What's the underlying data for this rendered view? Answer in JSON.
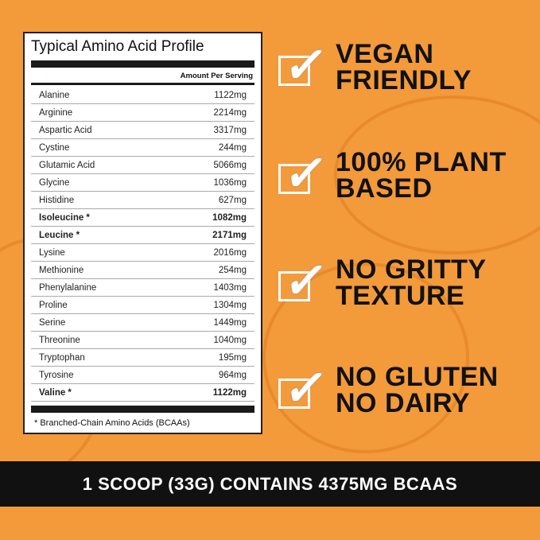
{
  "panel": {
    "title": "Typical Amino Acid Profile",
    "column_header": "Amount Per Serving",
    "rows": [
      {
        "name": "Alanine",
        "amount": "1122mg",
        "bold": false
      },
      {
        "name": "Arginine",
        "amount": "2214mg",
        "bold": false
      },
      {
        "name": "Aspartic Acid",
        "amount": "3317mg",
        "bold": false
      },
      {
        "name": "Cystine",
        "amount": "244mg",
        "bold": false
      },
      {
        "name": "Glutamic Acid",
        "amount": "5066mg",
        "bold": false
      },
      {
        "name": "Glycine",
        "amount": "1036mg",
        "bold": false
      },
      {
        "name": "Histidine",
        "amount": "627mg",
        "bold": false
      },
      {
        "name": "Isoleucine *",
        "amount": "1082mg",
        "bold": true
      },
      {
        "name": "Leucine *",
        "amount": "2171mg",
        "bold": true
      },
      {
        "name": "Lysine",
        "amount": "2016mg",
        "bold": false
      },
      {
        "name": "Methionine",
        "amount": "254mg",
        "bold": false
      },
      {
        "name": "Phenylalanine",
        "amount": "1403mg",
        "bold": false
      },
      {
        "name": "Proline",
        "amount": "1304mg",
        "bold": false
      },
      {
        "name": "Serine",
        "amount": "1449mg",
        "bold": false
      },
      {
        "name": "Threonine",
        "amount": "1040mg",
        "bold": false
      },
      {
        "name": "Tryptophan",
        "amount": "195mg",
        "bold": false
      },
      {
        "name": "Tyrosine",
        "amount": "964mg",
        "bold": false
      },
      {
        "name": "Valine *",
        "amount": "1122mg",
        "bold": true
      }
    ],
    "footnote": "* Branched-Chain Amino Acids (BCAAs)"
  },
  "features": [
    {
      "line1": "VEGAN",
      "line2": "FRIENDLY",
      "icon": "checkbox-checked-icon"
    },
    {
      "line1": "100% PLANT",
      "line2": "BASED",
      "icon": "checkbox-checked-icon"
    },
    {
      "line1": "NO GRITTY",
      "line2": "TEXTURE",
      "icon": "checkbox-checked-icon"
    },
    {
      "line1": "NO GLUTEN",
      "line2": "NO DAIRY",
      "icon": "checkbox-checked-icon"
    }
  ],
  "banner": {
    "text": "1 SCOOP (33G) CONTAINS 4375MG BCAAS"
  },
  "colors": {
    "background": "#f39a3b",
    "banner": "#111111"
  }
}
